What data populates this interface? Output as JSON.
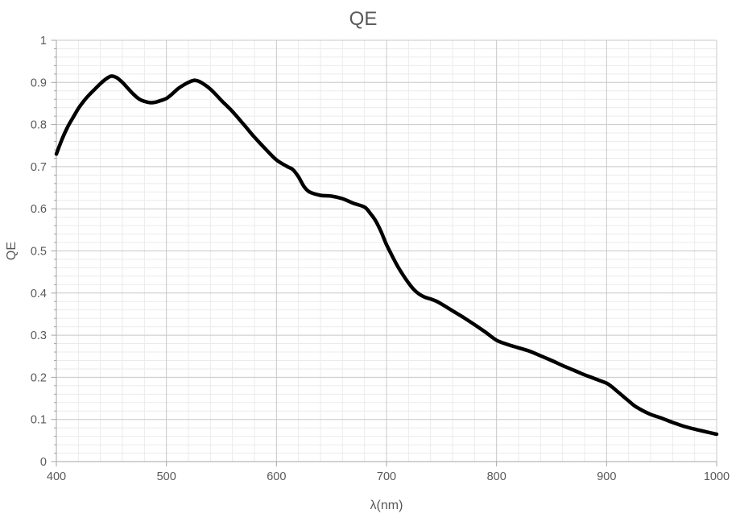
{
  "chart_data": {
    "type": "line",
    "title": "QE",
    "xlabel": "λ(nm)",
    "ylabel": "QE",
    "x_axis": {
      "min": 400,
      "max": 1000,
      "major_step": 100,
      "minor_step": 20,
      "tick_labels": [
        "400",
        "500",
        "600",
        "700",
        "800",
        "900",
        "1000"
      ]
    },
    "y_axis": {
      "min": 0,
      "max": 1,
      "major_step": 0.1,
      "minor_step": 0.02,
      "tick_labels": [
        "0",
        "0.1",
        "0.2",
        "0.3",
        "0.4",
        "0.5",
        "0.6",
        "0.7",
        "0.8",
        "0.9",
        "1"
      ]
    },
    "grid": {
      "major": true,
      "minor": true
    },
    "legend": "none",
    "series": [
      {
        "name": "QE",
        "color": "#000000",
        "points": [
          [
            400,
            0.73
          ],
          [
            405,
            0.764
          ],
          [
            410,
            0.793
          ],
          [
            415,
            0.816
          ],
          [
            420,
            0.838
          ],
          [
            425,
            0.856
          ],
          [
            430,
            0.871
          ],
          [
            435,
            0.884
          ],
          [
            440,
            0.897
          ],
          [
            445,
            0.908
          ],
          [
            450,
            0.915
          ],
          [
            455,
            0.911
          ],
          [
            460,
            0.9
          ],
          [
            465,
            0.886
          ],
          [
            470,
            0.872
          ],
          [
            475,
            0.861
          ],
          [
            480,
            0.855
          ],
          [
            485,
            0.852
          ],
          [
            490,
            0.853
          ],
          [
            495,
            0.857
          ],
          [
            500,
            0.862
          ],
          [
            505,
            0.872
          ],
          [
            510,
            0.884
          ],
          [
            515,
            0.893
          ],
          [
            520,
            0.9
          ],
          [
            525,
            0.905
          ],
          [
            530,
            0.902
          ],
          [
            535,
            0.894
          ],
          [
            540,
            0.884
          ],
          [
            545,
            0.871
          ],
          [
            550,
            0.857
          ],
          [
            560,
            0.831
          ],
          [
            570,
            0.801
          ],
          [
            580,
            0.77
          ],
          [
            590,
            0.742
          ],
          [
            600,
            0.716
          ],
          [
            610,
            0.7
          ],
          [
            615,
            0.693
          ],
          [
            620,
            0.676
          ],
          [
            625,
            0.653
          ],
          [
            630,
            0.64
          ],
          [
            640,
            0.632
          ],
          [
            650,
            0.63
          ],
          [
            660,
            0.624
          ],
          [
            670,
            0.613
          ],
          [
            680,
            0.604
          ],
          [
            685,
            0.59
          ],
          [
            690,
            0.572
          ],
          [
            695,
            0.546
          ],
          [
            700,
            0.515
          ],
          [
            705,
            0.489
          ],
          [
            710,
            0.464
          ],
          [
            715,
            0.443
          ],
          [
            720,
            0.424
          ],
          [
            725,
            0.408
          ],
          [
            730,
            0.397
          ],
          [
            735,
            0.39
          ],
          [
            740,
            0.386
          ],
          [
            745,
            0.381
          ],
          [
            750,
            0.374
          ],
          [
            760,
            0.358
          ],
          [
            770,
            0.342
          ],
          [
            780,
            0.325
          ],
          [
            790,
            0.307
          ],
          [
            800,
            0.288
          ],
          [
            810,
            0.278
          ],
          [
            820,
            0.27
          ],
          [
            830,
            0.262
          ],
          [
            840,
            0.251
          ],
          [
            850,
            0.24
          ],
          [
            860,
            0.228
          ],
          [
            870,
            0.217
          ],
          [
            880,
            0.206
          ],
          [
            890,
            0.196
          ],
          [
            900,
            0.186
          ],
          [
            905,
            0.177
          ],
          [
            910,
            0.166
          ],
          [
            915,
            0.155
          ],
          [
            920,
            0.144
          ],
          [
            925,
            0.133
          ],
          [
            930,
            0.125
          ],
          [
            940,
            0.112
          ],
          [
            950,
            0.103
          ],
          [
            960,
            0.093
          ],
          [
            970,
            0.084
          ],
          [
            980,
            0.077
          ],
          [
            990,
            0.071
          ],
          [
            1000,
            0.065
          ]
        ]
      }
    ],
    "colors": {
      "curve": "#000000",
      "major_grid": "#c8c8c8",
      "minor_grid": "#ebebeb",
      "axis": "#a6a6a6",
      "text": "#595959"
    }
  }
}
